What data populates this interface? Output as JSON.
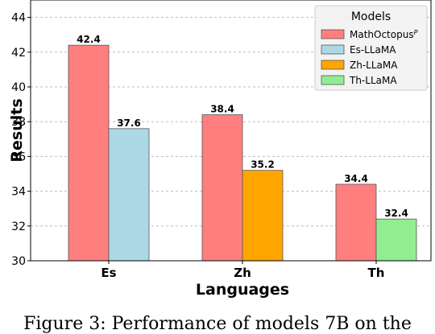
{
  "chart_data": {
    "type": "bar",
    "categories": [
      "Es",
      "Zh",
      "Th"
    ],
    "groups": [
      {
        "category": "Es",
        "bars": [
          {
            "series": "MathOctopus",
            "value": 42.4,
            "label": "42.4"
          },
          {
            "series": "Es-LLaMA",
            "value": 37.6,
            "label": "37.6"
          }
        ]
      },
      {
        "category": "Zh",
        "bars": [
          {
            "series": "MathOctopus",
            "value": 38.4,
            "label": "38.4"
          },
          {
            "series": "Zh-LLaMA",
            "value": 35.2,
            "label": "35.2"
          }
        ]
      },
      {
        "category": "Th",
        "bars": [
          {
            "series": "MathOctopus",
            "value": 34.4,
            "label": "34.4"
          },
          {
            "series": "Th-LLaMA",
            "value": 32.4,
            "label": "32.4"
          }
        ]
      }
    ],
    "series": [
      {
        "name": "MathOctopus",
        "superscript": "P",
        "color": "#ff7f7f"
      },
      {
        "name": "Es-LLaMA",
        "color": "#add8e6"
      },
      {
        "name": "Zh-LLaMA",
        "color": "#ffa500"
      },
      {
        "name": "Th-LLaMA",
        "color": "#90ee90"
      }
    ],
    "xlabel": "Languages",
    "ylabel": "Results",
    "ylim": [
      30,
      45
    ],
    "yticks": [
      30,
      32,
      34,
      36,
      38,
      40,
      42,
      44
    ],
    "grid": true,
    "legend": {
      "title": "Models",
      "placement": "top-right"
    }
  },
  "caption": "Figure 3: Performance of models 7B on the"
}
